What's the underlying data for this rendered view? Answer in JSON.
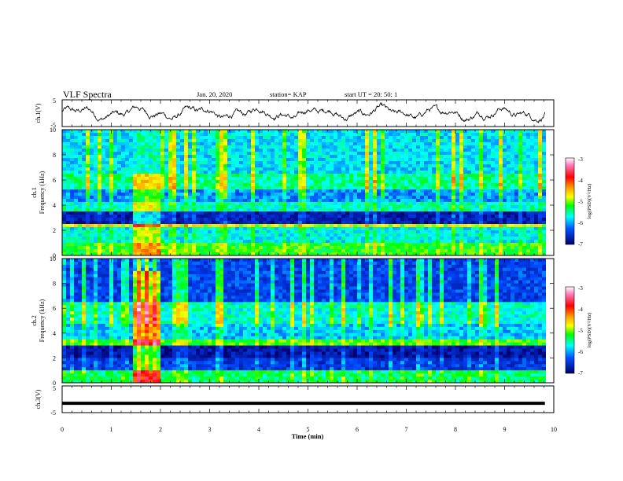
{
  "header": {
    "title": "VLF Spectra",
    "date": "Jan. 20, 2020",
    "station": "station= KAP",
    "start": "start  UT =   20: 50: 1"
  },
  "chart_data": [
    {
      "id": "ch1",
      "type": "line",
      "ylabel": "ch.1(V)",
      "ylim": [
        -5,
        5
      ],
      "yticks": [
        "5",
        "-5"
      ],
      "xlim": [
        0,
        10
      ],
      "note": "time series waveform"
    },
    {
      "id": "spec1",
      "type": "heatmap",
      "ylabel_line1": "ch.1",
      "ylabel_line2": "Frequency (kHz)",
      "ylim": [
        0,
        10
      ],
      "yticks": [
        "0",
        "2",
        "4",
        "6",
        "8",
        "10"
      ],
      "xlim": [
        0,
        10
      ],
      "burst_interval": [
        1.45,
        2.0
      ],
      "colorbar": {
        "label": "log(PSD)(V²/Hz)",
        "ticks": [
          "-3",
          "-4",
          "-5",
          "-6",
          "-7"
        ],
        "colors": [
          "#ff00ff",
          "#ff0000",
          "#ffaa00",
          "#ffff00",
          "#00ff00",
          "#00ffff",
          "#0066ff",
          "#0000aa"
        ]
      }
    },
    {
      "id": "spec2",
      "type": "heatmap",
      "ylabel_line1": "ch.2",
      "ylabel_line2": "Frequency (kHz)",
      "ylim": [
        0,
        10
      ],
      "yticks": [
        "0",
        "2",
        "4",
        "6",
        "8",
        "10"
      ],
      "xlim": [
        0,
        10
      ],
      "burst_interval": [
        1.45,
        2.0
      ],
      "colorbar": {
        "label": "log(PSD)(V²/Hz)",
        "ticks": [
          "-3",
          "-4",
          "-5",
          "-6",
          "-7"
        ],
        "colors": [
          "#ff00ff",
          "#ff0000",
          "#ffaa00",
          "#ffff00",
          "#00ff00",
          "#00ffff",
          "#0066ff",
          "#0000aa"
        ]
      }
    },
    {
      "id": "ch3",
      "type": "line",
      "ylabel": "ch.3(V)",
      "ylim": [
        -5,
        5
      ],
      "yticks": [
        "5",
        "-5"
      ],
      "xlim": [
        0,
        10
      ],
      "constant_value": -1.5
    }
  ],
  "xaxis": {
    "label": "Time  (min)",
    "ticks": [
      "0",
      "1",
      "2",
      "3",
      "4",
      "5",
      "6",
      "7",
      "8",
      "9",
      "10"
    ]
  }
}
